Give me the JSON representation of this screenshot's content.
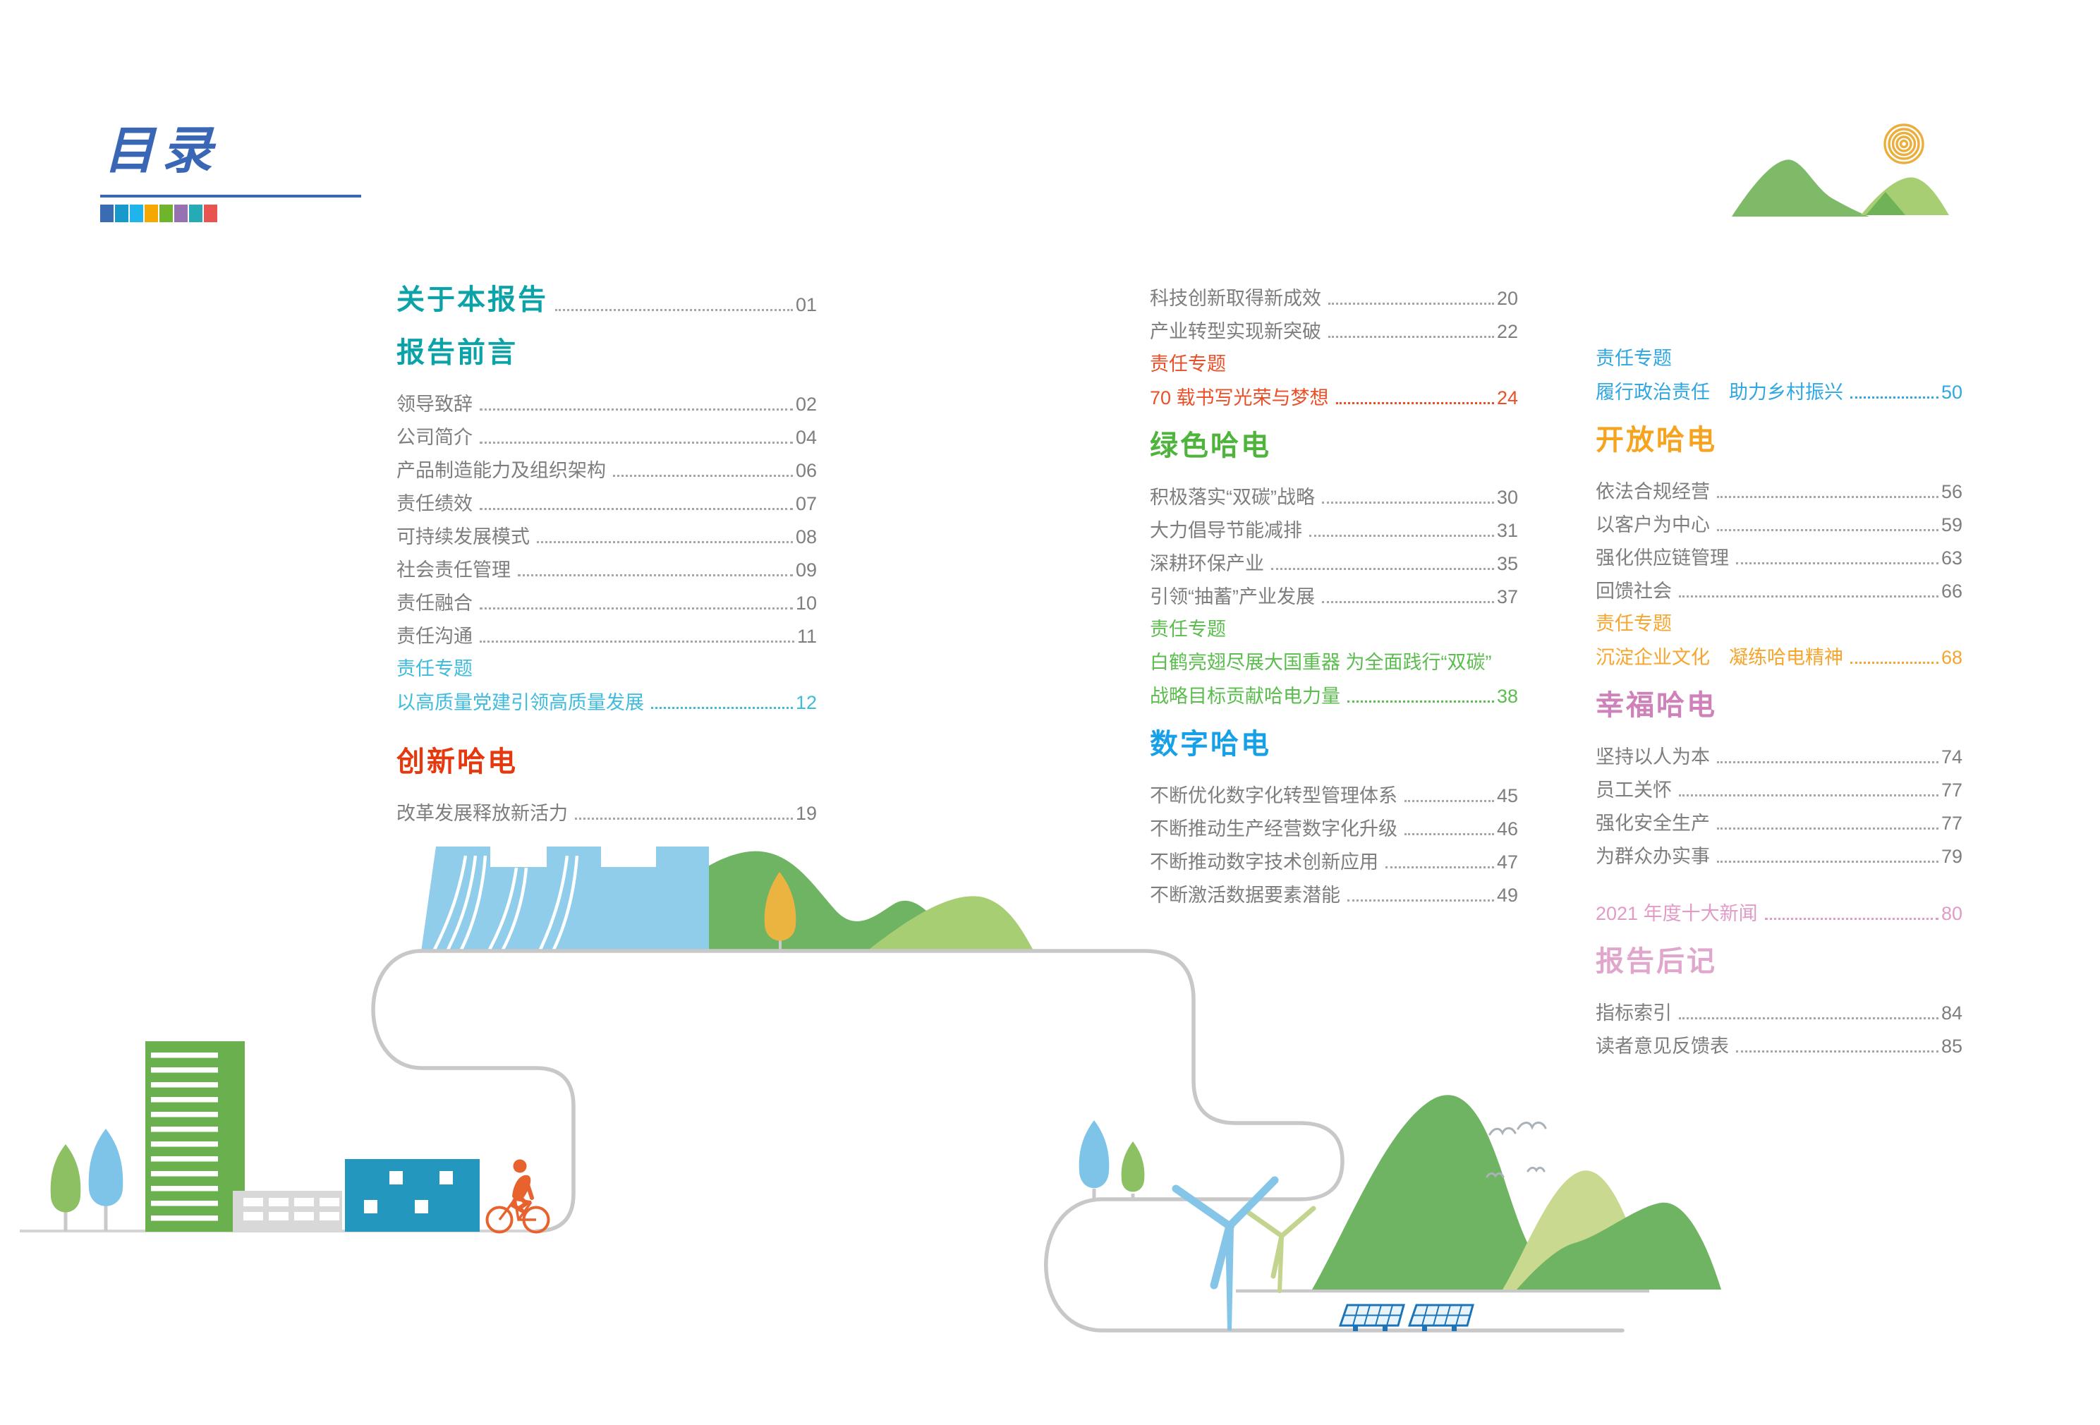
{
  "title": {
    "text": "目录"
  },
  "palette": [
    "#3A6CB4",
    "#1899CB",
    "#1FB4EC",
    "#F7A800",
    "#6EB52C",
    "#9672B2",
    "#26AAB6",
    "#E85450"
  ],
  "colors": {
    "title_blue": "#3A67B5",
    "item_gray": "#7E7E7E",
    "teal": "#0BA3A8",
    "red": "#E6380F",
    "green": "#4EB43B",
    "blue": "#16A0E8",
    "orange": "#F6A41F",
    "pink": "#CF82B9",
    "light_pink": "#E0A6CB"
  },
  "columns": [
    {
      "blocks": [
        {
          "t": "hrow",
          "label": "关于本报告",
          "page": "01",
          "color": "#0BA3A8"
        },
        {
          "t": "h",
          "label": "报告前言",
          "color": "#0BA3A8"
        },
        {
          "t": "i",
          "label": "领导致辞",
          "page": "02"
        },
        {
          "t": "i",
          "label": "公司简介",
          "page": "04"
        },
        {
          "t": "i",
          "label": "产品制造能力及组织架构",
          "page": "06"
        },
        {
          "t": "i",
          "label": "责任绩效",
          "page": "07"
        },
        {
          "t": "i",
          "label": "可持续发展模式",
          "page": "08"
        },
        {
          "t": "i",
          "label": "社会责任管理",
          "page": "09"
        },
        {
          "t": "i",
          "label": "责任融合",
          "page": "10"
        },
        {
          "t": "i",
          "label": "责任沟通",
          "page": "11"
        },
        {
          "t": "lab",
          "label": "责任专题",
          "color": "#3FBBDC"
        },
        {
          "t": "s",
          "label": "以高质量党建引领高质量发展",
          "page": "12",
          "color": "#3FBBDC"
        },
        {
          "t": "h",
          "label": "创新哈电",
          "color": "#E6380F",
          "gap": true
        },
        {
          "t": "i",
          "label": "改革发展释放新活力",
          "page": "19"
        }
      ]
    },
    {
      "blocks": [
        {
          "t": "i",
          "label": "科技创新取得新成效",
          "page": "20"
        },
        {
          "t": "i",
          "label": "产业转型实现新突破",
          "page": "22"
        },
        {
          "t": "lab",
          "label": "责任专题",
          "color": "#EB4F28"
        },
        {
          "t": "s",
          "label": "70 载书写光荣与梦想",
          "page": "24",
          "color": "#EB4F28"
        },
        {
          "t": "h",
          "label": "绿色哈电",
          "color": "#4EB43B"
        },
        {
          "t": "i",
          "label": "积极落实“双碳”战略",
          "page": "30"
        },
        {
          "t": "i",
          "label": "大力倡导节能减排",
          "page": "31"
        },
        {
          "t": "i",
          "label": "深耕环保产业",
          "page": "35"
        },
        {
          "t": "i",
          "label": "引领“抽蓄”产业发展",
          "page": "37"
        },
        {
          "t": "lab",
          "label": "责任专题",
          "color": "#5BBD4E"
        },
        {
          "t": "nl",
          "label": "白鹤亮翅尽展大国重器  为全面践行“双碳”",
          "color": "#5BBD4E"
        },
        {
          "t": "s",
          "label": "战略目标贡献哈电力量",
          "page": "38",
          "color": "#5BBD4E"
        },
        {
          "t": "h",
          "label": "数字哈电",
          "color": "#16A0E8"
        },
        {
          "t": "i",
          "label": "不断优化数字化转型管理体系",
          "page": "45"
        },
        {
          "t": "i",
          "label": "不断推动生产经营数字化升级",
          "page": "46"
        },
        {
          "t": "i",
          "label": "不断推动数字技术创新应用",
          "page": "47"
        },
        {
          "t": "i",
          "label": "不断激活数据要素潜能",
          "page": "49"
        }
      ]
    },
    {
      "blocks": [
        {
          "t": "lab",
          "label": "责任专题",
          "color": "#2FA7E2"
        },
        {
          "t": "s",
          "label": "履行政治责任　助力乡村振兴",
          "page": "50",
          "color": "#2FA7E2"
        },
        {
          "t": "h",
          "label": "开放哈电",
          "color": "#F6A41F"
        },
        {
          "t": "i",
          "label": "依法合规经营",
          "page": "56"
        },
        {
          "t": "i",
          "label": "以客户为中心",
          "page": "59"
        },
        {
          "t": "i",
          "label": "强化供应链管理",
          "page": "63"
        },
        {
          "t": "i",
          "label": "回馈社会",
          "page": "66"
        },
        {
          "t": "lab",
          "label": "责任专题",
          "color": "#F6A62E"
        },
        {
          "t": "s",
          "label": "沉淀企业文化　凝练哈电精神",
          "page": "68",
          "color": "#F6A62E"
        },
        {
          "t": "h",
          "label": "幸福哈电",
          "color": "#CF82B9"
        },
        {
          "t": "i",
          "label": "坚持以人为本",
          "page": "74"
        },
        {
          "t": "i",
          "label": "员工关怀",
          "page": "77"
        },
        {
          "t": "i",
          "label": "强化安全生产",
          "page": "77"
        },
        {
          "t": "i",
          "label": "为群众办实事",
          "page": "79"
        },
        {
          "t": "s",
          "label": "2021 年度十大新闻",
          "page": "80",
          "color": "#E29BC6",
          "gap": true
        },
        {
          "t": "h",
          "label": "报告后记",
          "color": "#E0A6CB"
        },
        {
          "t": "i",
          "label": "指标索引",
          "page": "84"
        },
        {
          "t": "i",
          "label": "读者意见反馈表",
          "page": "85"
        }
      ]
    }
  ]
}
